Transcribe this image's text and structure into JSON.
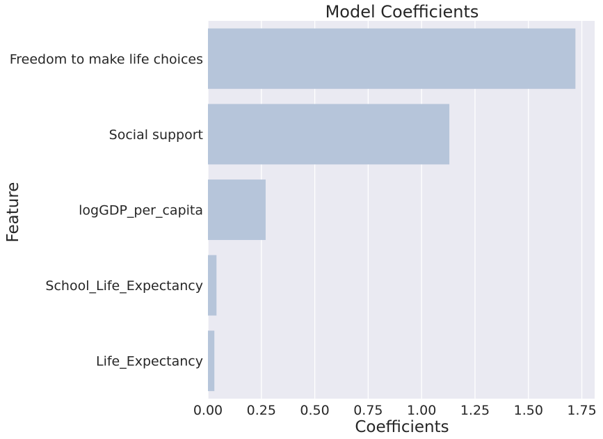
{
  "chart_data": {
    "type": "bar",
    "orientation": "horizontal",
    "title": "Model Coefficients",
    "xlabel": "Coefficients",
    "ylabel": "Feature",
    "categories": [
      "Freedom to make life choices",
      "Social support",
      "logGDP_per_capita",
      "School_Life_Expectancy",
      "Life_Expectancy"
    ],
    "values": [
      1.72,
      1.13,
      0.27,
      0.04,
      0.03
    ],
    "xlim": [
      0,
      1.81
    ],
    "xticks": [
      0.0,
      0.25,
      0.5,
      0.75,
      1.0,
      1.25,
      1.5,
      1.75
    ],
    "xtick_labels": [
      "0.00",
      "0.25",
      "0.50",
      "0.75",
      "1.00",
      "1.25",
      "1.50",
      "1.75"
    ],
    "grid": true,
    "colors": {
      "bar": "#b6c5da",
      "plot_background": "#eaeaf2",
      "grid": "#ffffff",
      "text": "#262626"
    }
  }
}
